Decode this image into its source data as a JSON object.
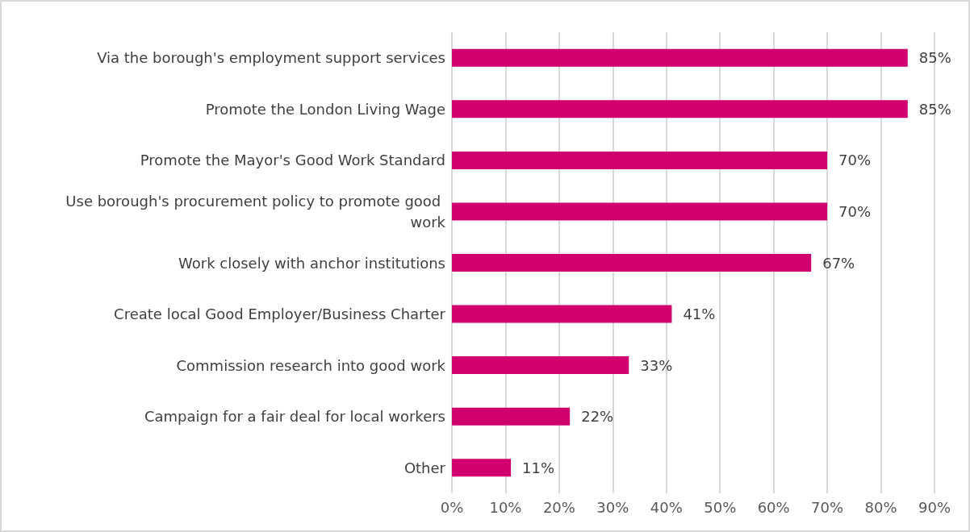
{
  "chart_data": {
    "type": "bar",
    "orientation": "horizontal",
    "categories": [
      "Via the borough's employment support services",
      "Promote the London Living Wage",
      "Promote the Mayor's Good Work Standard",
      "Use borough's procurement policy to promote good work",
      "Work closely with anchor institutions",
      "Create local Good Employer/Business Charter",
      "Commission research into good work",
      "Campaign for a fair deal for local workers",
      "Other"
    ],
    "values": [
      85,
      85,
      70,
      70,
      67,
      41,
      33,
      22,
      11
    ],
    "value_labels": [
      "85%",
      "85%",
      "70%",
      "70%",
      "67%",
      "41%",
      "33%",
      "22%",
      "11%"
    ],
    "color": "#d0006f",
    "xlim": [
      0,
      90
    ],
    "xticks": [
      {
        "value": 0,
        "label": "0%"
      },
      {
        "value": 10,
        "label": "10%"
      },
      {
        "value": 20,
        "label": "20%"
      },
      {
        "value": 30,
        "label": "30%"
      },
      {
        "value": 40,
        "label": "40%"
      },
      {
        "value": 50,
        "label": "50%"
      },
      {
        "value": 60,
        "label": "60%"
      },
      {
        "value": 70,
        "label": "70%"
      },
      {
        "value": 80,
        "label": "80%"
      },
      {
        "value": 90,
        "label": "90%"
      }
    ],
    "grid": "x"
  }
}
